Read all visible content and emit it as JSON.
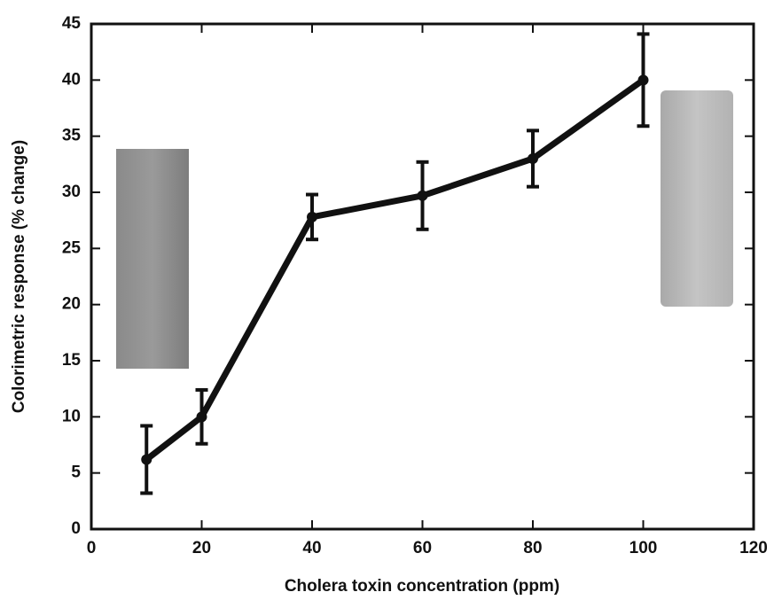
{
  "chart_data": {
    "type": "line",
    "x_label": "Cholera toxin concentration (ppm)",
    "y_label": "Colorimetric response (% change)",
    "x": [
      10,
      20,
      40,
      60,
      80,
      100
    ],
    "series": [
      {
        "color": "#111111",
        "values": [
          6.2,
          10,
          27.8,
          29.7,
          33,
          40
        ],
        "errors": [
          3,
          2.4,
          2,
          3,
          2.5,
          4.1
        ]
      }
    ],
    "xlim": [
      0,
      120
    ],
    "xticks": [
      0,
      20,
      40,
      60,
      80,
      100,
      120
    ],
    "ylim": [
      0,
      45
    ],
    "yticks": [
      0,
      5,
      10,
      15,
      20,
      25,
      30,
      35,
      40,
      45
    ],
    "grid": false
  }
}
